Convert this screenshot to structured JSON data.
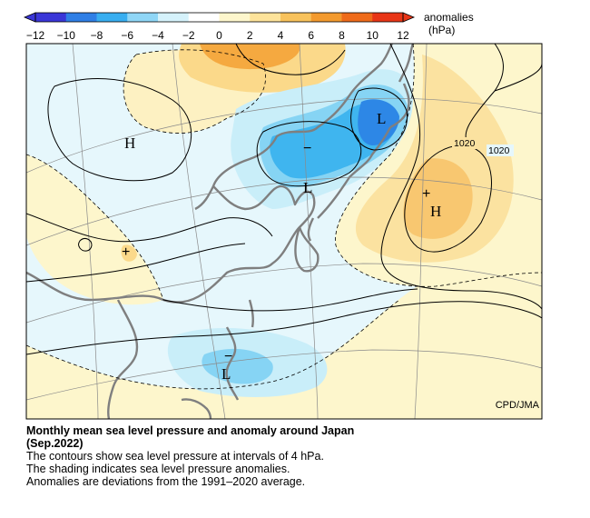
{
  "colorbar": {
    "title": "anomalies",
    "unit": "(hPa)",
    "ticks": [
      "−12",
      "−10",
      "−8",
      "−6",
      "−4",
      "−2",
      "0",
      "2",
      "4",
      "6",
      "8",
      "10",
      "12"
    ],
    "colors": [
      "#3a36d8",
      "#2f7fe6",
      "#38aef0",
      "#8fd6f6",
      "#d5f2fb",
      "#ffffff",
      "#fdf6cc",
      "#fde39a",
      "#f8c25c",
      "#f39a2e",
      "#ef6b1a",
      "#e83516"
    ]
  },
  "map": {
    "colors": {
      "ocean_base": "#e6f7fc",
      "land_base": "#fdf7d3",
      "neg_light": "#d3f1fa",
      "neg_mid": "#94d9f5",
      "neg_strong": "#3fb5ef",
      "neg_deep": "#2d87e6",
      "pos_light": "#fdf1c2",
      "pos_mid": "#fbd98a",
      "pos_strong": "#f7bb55",
      "pos_deep": "#f29b30",
      "coast": "#7f7f7f"
    },
    "labels": {
      "high_nw": "H",
      "low_ne": "L",
      "low_japan": "L",
      "high_pacific": "H",
      "low_south": "L",
      "minus": "−",
      "contour_1020_a": "1020",
      "contour_1020_b": "1020",
      "plus": "+"
    },
    "credit": "CPD/JMA"
  },
  "caption": {
    "title": "Monthly mean sea level pressure and anomaly around Japan",
    "subtitle": "(Sep.2022)",
    "line1": "The contours show sea level pressure at intervals of 4 hPa.",
    "line2": "The shading indicates sea level pressure anomalies.",
    "line3": "Anomalies are deviations from the 1991–2020 average."
  }
}
